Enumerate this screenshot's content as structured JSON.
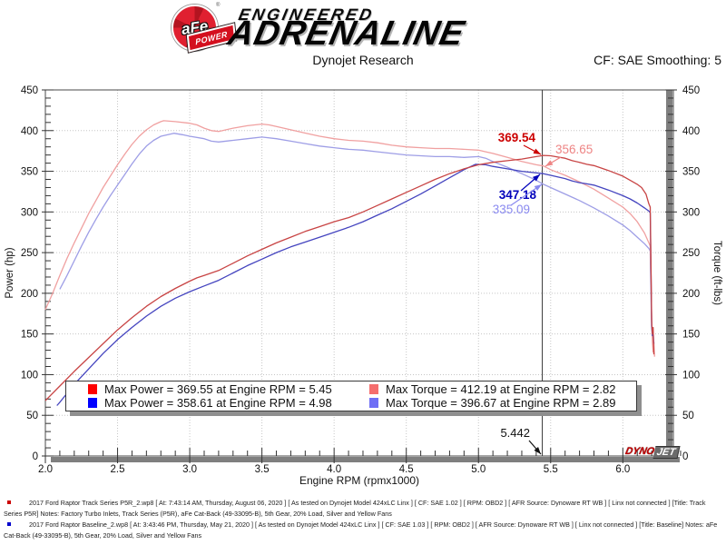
{
  "header": {
    "brand": {
      "badge_text": "aFe",
      "badge_sub": "POWER",
      "reg_mark": "®",
      "line1": "ENGINEERED",
      "line2": "ADRENALINE"
    },
    "title": "Dynojet Research",
    "smoothing": "CF: SAE Smoothing: 5"
  },
  "dynojet": {
    "part1": "DYNO",
    "part2": "JET"
  },
  "chart_data": {
    "type": "line",
    "title": "Dynojet Research",
    "xlabel": "Engine RPM (rpmx1000)",
    "ylabel_left": "Power (hp)",
    "ylabel_right": "Torque (ft-lbs)",
    "xlim": [
      2.0,
      6.35
    ],
    "ylim": [
      0,
      450
    ],
    "x_major_step": 0.5,
    "x_minor_step": 0.1,
    "y_major_step": 50,
    "y_minor_step": 10,
    "grid": true,
    "cursor": {
      "rpm": 5.442,
      "label": "5.442"
    },
    "series": [
      {
        "name": "torque-baseline",
        "unit": "ft-lbs",
        "color": "#9e9ee6",
        "points": [
          [
            2.1,
            205
          ],
          [
            2.15,
            222
          ],
          [
            2.2,
            240
          ],
          [
            2.25,
            258
          ],
          [
            2.3,
            275
          ],
          [
            2.35,
            291
          ],
          [
            2.4,
            306
          ],
          [
            2.45,
            320
          ],
          [
            2.5,
            333
          ],
          [
            2.55,
            346
          ],
          [
            2.6,
            359
          ],
          [
            2.65,
            371
          ],
          [
            2.7,
            381
          ],
          [
            2.75,
            388
          ],
          [
            2.8,
            393
          ],
          [
            2.89,
            396.7
          ],
          [
            2.95,
            395
          ],
          [
            3.0,
            393
          ],
          [
            3.1,
            390
          ],
          [
            3.15,
            387
          ],
          [
            3.2,
            386
          ],
          [
            3.3,
            388
          ],
          [
            3.4,
            390
          ],
          [
            3.5,
            392
          ],
          [
            3.6,
            390
          ],
          [
            3.7,
            387
          ],
          [
            3.8,
            384
          ],
          [
            3.9,
            381
          ],
          [
            4.0,
            379
          ],
          [
            4.1,
            377
          ],
          [
            4.2,
            376
          ],
          [
            4.3,
            374
          ],
          [
            4.4,
            372
          ],
          [
            4.5,
            370
          ],
          [
            4.6,
            369
          ],
          [
            4.7,
            368
          ],
          [
            4.8,
            368
          ],
          [
            4.9,
            367
          ],
          [
            5.0,
            368
          ],
          [
            5.05,
            366
          ],
          [
            5.1,
            362
          ],
          [
            5.2,
            355
          ],
          [
            5.3,
            347
          ],
          [
            5.4,
            339
          ],
          [
            5.45,
            334
          ],
          [
            5.5,
            330
          ],
          [
            5.6,
            322
          ],
          [
            5.7,
            314
          ],
          [
            5.8,
            305
          ],
          [
            5.9,
            295
          ],
          [
            6.0,
            284
          ],
          [
            6.05,
            277
          ],
          [
            6.1,
            269
          ],
          [
            6.15,
            261
          ],
          [
            6.18,
            255
          ],
          [
            6.19,
            252
          ],
          [
            6.195,
            200
          ],
          [
            6.2,
            158
          ],
          [
            6.205,
            150
          ],
          [
            6.21,
            142
          ]
        ]
      },
      {
        "name": "torque-afe",
        "unit": "ft-lbs",
        "color": "#f0a0a0",
        "points": [
          [
            2.0,
            180
          ],
          [
            2.05,
            200
          ],
          [
            2.1,
            222
          ],
          [
            2.15,
            243
          ],
          [
            2.2,
            262
          ],
          [
            2.25,
            280
          ],
          [
            2.3,
            298
          ],
          [
            2.35,
            314
          ],
          [
            2.4,
            330
          ],
          [
            2.45,
            344
          ],
          [
            2.5,
            358
          ],
          [
            2.55,
            371
          ],
          [
            2.6,
            383
          ],
          [
            2.65,
            393
          ],
          [
            2.7,
            401
          ],
          [
            2.75,
            407
          ],
          [
            2.8,
            411
          ],
          [
            2.82,
            412.2
          ],
          [
            2.9,
            411
          ],
          [
            3.0,
            409
          ],
          [
            3.05,
            407
          ],
          [
            3.1,
            403
          ],
          [
            3.15,
            400
          ],
          [
            3.2,
            399
          ],
          [
            3.3,
            403
          ],
          [
            3.4,
            406
          ],
          [
            3.5,
            408
          ],
          [
            3.55,
            407
          ],
          [
            3.6,
            405
          ],
          [
            3.7,
            401
          ],
          [
            3.8,
            397
          ],
          [
            3.9,
            393
          ],
          [
            4.0,
            390
          ],
          [
            4.1,
            388
          ],
          [
            4.2,
            387
          ],
          [
            4.3,
            385
          ],
          [
            4.4,
            382
          ],
          [
            4.5,
            380
          ],
          [
            4.6,
            379
          ],
          [
            4.7,
            378
          ],
          [
            4.8,
            378
          ],
          [
            4.9,
            377
          ],
          [
            5.0,
            376
          ],
          [
            5.05,
            374
          ],
          [
            5.1,
            372
          ],
          [
            5.2,
            367
          ],
          [
            5.3,
            362
          ],
          [
            5.4,
            358
          ],
          [
            5.45,
            356.5
          ],
          [
            5.5,
            352
          ],
          [
            5.6,
            345
          ],
          [
            5.7,
            337
          ],
          [
            5.8,
            328
          ],
          [
            5.9,
            317
          ],
          [
            6.0,
            306
          ],
          [
            6.05,
            298
          ],
          [
            6.1,
            288
          ],
          [
            6.15,
            274
          ],
          [
            6.18,
            262
          ],
          [
            6.19,
            258
          ],
          [
            6.195,
            215
          ],
          [
            6.2,
            165
          ],
          [
            6.205,
            140
          ],
          [
            6.21,
            128
          ],
          [
            6.215,
            140
          ],
          [
            6.22,
            122
          ]
        ]
      },
      {
        "name": "power-baseline",
        "unit": "hp",
        "color": "#4444bf",
        "points": [
          [
            2.08,
            62
          ],
          [
            2.1,
            66
          ],
          [
            2.2,
            88
          ],
          [
            2.3,
            107
          ],
          [
            2.4,
            126
          ],
          [
            2.5,
            143
          ],
          [
            2.6,
            158
          ],
          [
            2.7,
            172
          ],
          [
            2.8,
            184
          ],
          [
            2.9,
            194
          ],
          [
            3.0,
            202
          ],
          [
            3.1,
            209
          ],
          [
            3.2,
            216
          ],
          [
            3.3,
            225
          ],
          [
            3.4,
            234
          ],
          [
            3.5,
            242
          ],
          [
            3.6,
            250
          ],
          [
            3.7,
            257
          ],
          [
            3.8,
            263
          ],
          [
            3.9,
            269
          ],
          [
            4.0,
            275
          ],
          [
            4.1,
            281
          ],
          [
            4.2,
            288
          ],
          [
            4.3,
            296
          ],
          [
            4.4,
            304
          ],
          [
            4.5,
            313
          ],
          [
            4.6,
            322
          ],
          [
            4.7,
            332
          ],
          [
            4.8,
            342
          ],
          [
            4.9,
            352
          ],
          [
            4.98,
            358.6
          ],
          [
            5.05,
            358
          ],
          [
            5.1,
            356
          ],
          [
            5.2,
            353
          ],
          [
            5.3,
            350
          ],
          [
            5.4,
            348
          ],
          [
            5.45,
            347
          ],
          [
            5.5,
            345
          ],
          [
            5.6,
            341
          ],
          [
            5.65,
            338
          ],
          [
            5.7,
            336
          ],
          [
            5.75,
            334.5
          ],
          [
            5.8,
            333
          ],
          [
            5.85,
            330
          ],
          [
            5.9,
            327
          ],
          [
            6.0,
            320
          ],
          [
            6.05,
            316
          ],
          [
            6.1,
            311
          ],
          [
            6.15,
            305
          ],
          [
            6.18,
            301
          ],
          [
            6.19,
            299
          ],
          [
            6.195,
            230
          ],
          [
            6.2,
            160
          ],
          [
            6.205,
            148
          ],
          [
            6.21,
            152
          ],
          [
            6.215,
            138
          ]
        ]
      },
      {
        "name": "power-afe",
        "unit": "hp",
        "color": "#c84444",
        "points": [
          [
            2.0,
            68
          ],
          [
            2.1,
            86
          ],
          [
            2.2,
            104
          ],
          [
            2.3,
            121
          ],
          [
            2.4,
            138
          ],
          [
            2.5,
            155
          ],
          [
            2.6,
            170
          ],
          [
            2.7,
            184
          ],
          [
            2.8,
            196
          ],
          [
            2.9,
            206
          ],
          [
            3.0,
            215
          ],
          [
            3.05,
            219
          ],
          [
            3.1,
            222
          ],
          [
            3.2,
            228
          ],
          [
            3.3,
            237
          ],
          [
            3.4,
            246
          ],
          [
            3.5,
            254
          ],
          [
            3.6,
            262
          ],
          [
            3.7,
            269
          ],
          [
            3.8,
            276
          ],
          [
            3.9,
            282
          ],
          [
            4.0,
            288
          ],
          [
            4.1,
            293
          ],
          [
            4.2,
            300
          ],
          [
            4.3,
            308
          ],
          [
            4.4,
            316
          ],
          [
            4.5,
            324
          ],
          [
            4.6,
            332
          ],
          [
            4.7,
            340
          ],
          [
            4.8,
            347
          ],
          [
            4.9,
            353
          ],
          [
            5.0,
            358
          ],
          [
            5.1,
            361
          ],
          [
            5.2,
            363
          ],
          [
            5.3,
            365
          ],
          [
            5.4,
            368
          ],
          [
            5.45,
            369.5
          ],
          [
            5.5,
            369
          ],
          [
            5.55,
            367.5
          ],
          [
            5.6,
            366
          ],
          [
            5.65,
            363
          ],
          [
            5.7,
            361
          ],
          [
            5.75,
            358.5
          ],
          [
            5.8,
            357
          ],
          [
            5.9,
            351
          ],
          [
            6.0,
            344
          ],
          [
            6.05,
            339
          ],
          [
            6.1,
            334
          ],
          [
            6.13,
            330
          ],
          [
            6.16,
            322
          ],
          [
            6.18,
            310
          ],
          [
            6.19,
            306
          ],
          [
            6.195,
            240
          ],
          [
            6.2,
            165
          ],
          [
            6.205,
            150
          ],
          [
            6.21,
            158
          ],
          [
            6.215,
            125
          ]
        ]
      }
    ],
    "annotations": [
      {
        "id": "power-afe-cursor",
        "text": "369.54",
        "color": "#cc0000",
        "bold": true
      },
      {
        "id": "torque-afe-cursor",
        "text": "356.65",
        "color": "#ee8484",
        "bold": false
      },
      {
        "id": "power-baseline-cursor",
        "text": "347.18",
        "color": "#0000bb",
        "bold": true
      },
      {
        "id": "torque-baseline-cursor",
        "text": "335.09",
        "color": "#8a8af0",
        "bold": false
      }
    ],
    "legend": [
      {
        "color": "#ff0000",
        "label": "Max Power = 369.55 at Engine RPM = 5.45"
      },
      {
        "color": "#f56e6e",
        "label": "Max Torque = 412.19 at Engine RPM = 2.82"
      },
      {
        "color": "#0000ff",
        "label": "Max Power = 358.61 at Engine RPM = 4.98"
      },
      {
        "color": "#6e6ef5",
        "label": "Max Torque = 396.67 at Engine RPM = 2.89"
      }
    ]
  },
  "footer": {
    "entries": [
      {
        "bullet_color": "#cc0000",
        "text": "2017 Ford Raptor Track Series P5R_2.wp8 [ At: 7:43:14 AM, Thursday, August 06, 2020 ] [ As tested on Dynojet Model 424xLC Linx ] [ CF: SAE 1.02 ] [ RPM: OBD2 ] [ AFR Source: Dynoware RT WB ] [ Linx not connected ] [Title: Track Series P5R]   Notes: Factory Turbo Inlets, Track Series (P5R), aFe Cat-Back (49-33095-B), 5th Gear, 20% Load, Silver and Yellow Fans"
      },
      {
        "bullet_color": "#0000cc",
        "text": "2017 Ford Raptor Baseline_2.wp8 [ At: 3:43:46 PM, Thursday, May 21, 2020 ] [ As tested on Dynojet Model 424xLC Linx ] [ CF: SAE 1.03 ] [ RPM: OBD2 ] [ AFR Source: Dynoware RT WB ] [ Linx not connected ] [Title: Baseline]   Notes: aFe Cat-Back (49-33095-B), 5th Gear, 20% Load, Silver and Yellow Fans"
      }
    ]
  }
}
